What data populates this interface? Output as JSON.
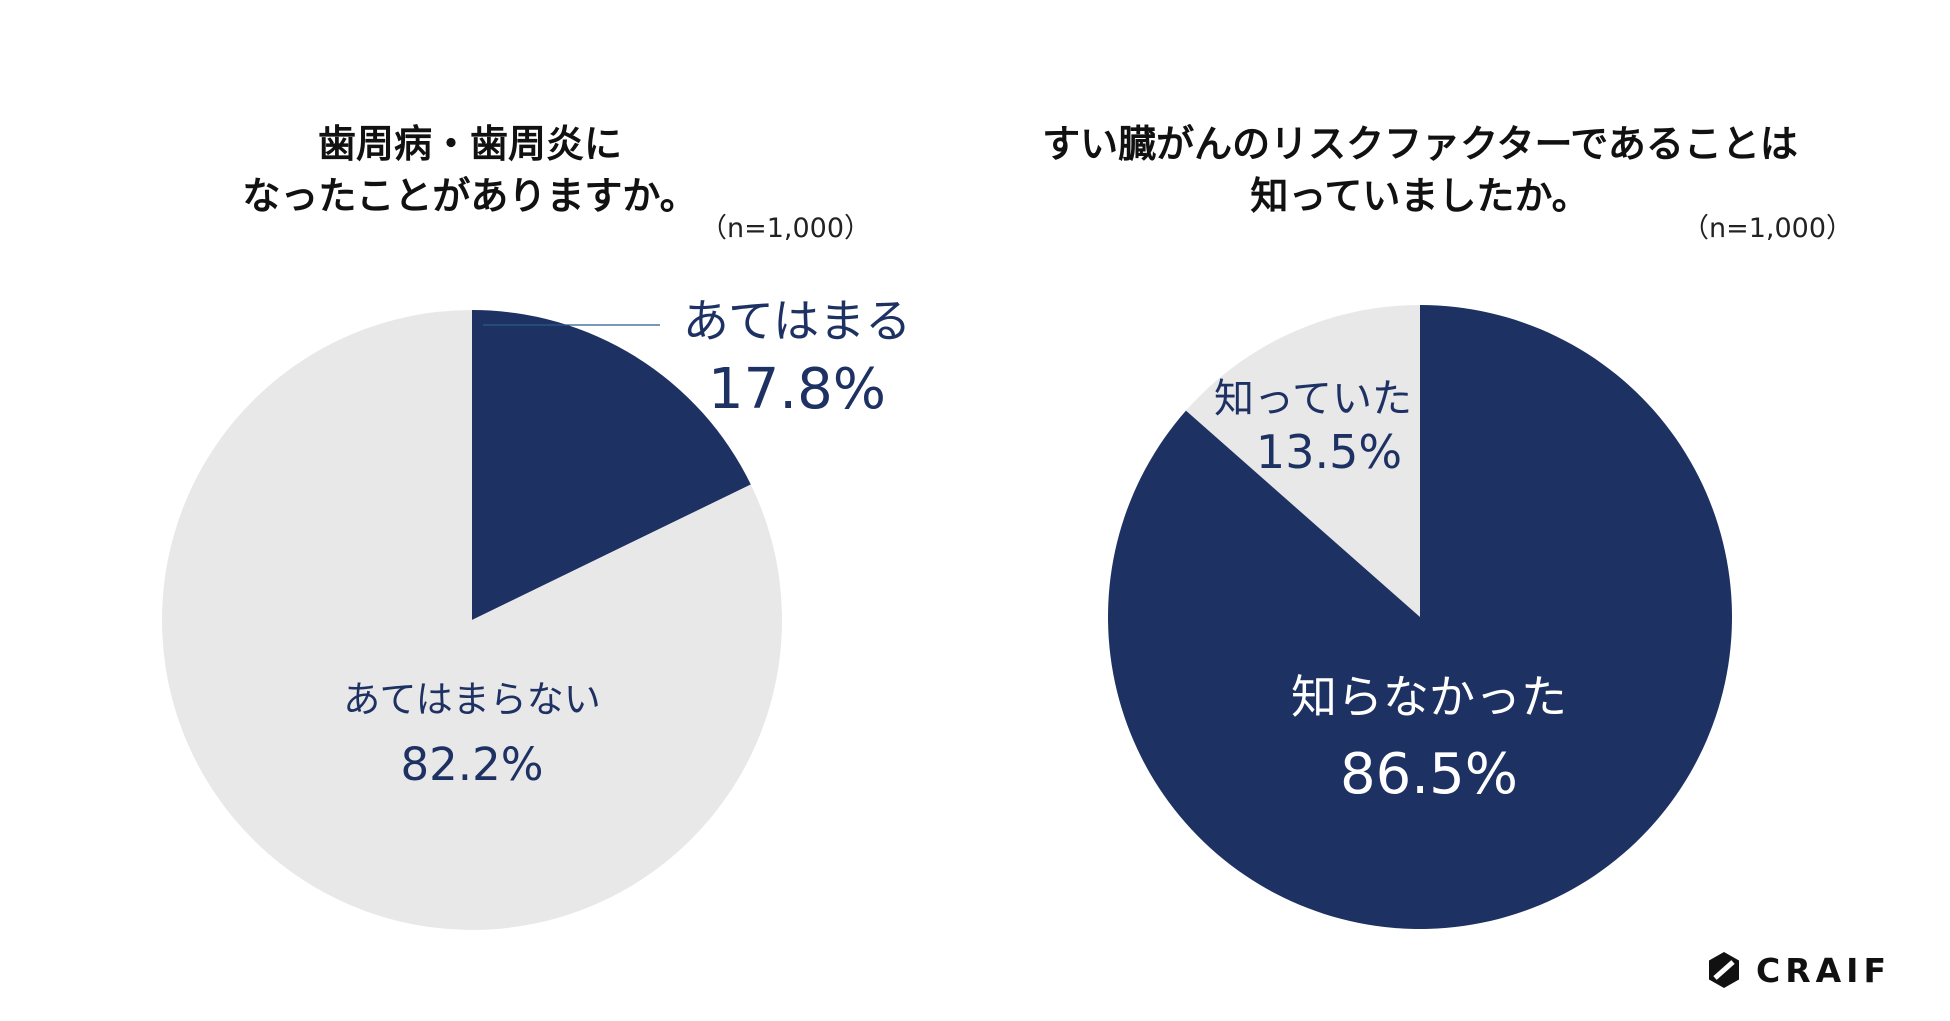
{
  "logo": {
    "text": "CRAIF",
    "icon": "hexagon-slash-icon"
  },
  "colors": {
    "navy": "#1e3163",
    "light": "#e9e8e9",
    "label_navy": "#1e3163",
    "label_white": "#ffffff"
  },
  "chart_data": [
    {
      "type": "pie",
      "title_lines": [
        "歯周病・歯周炎に",
        "なったことがありますか。"
      ],
      "sample_size": "（n=1,000）",
      "start_angle_deg": 0,
      "direction": "clockwise",
      "slices": [
        {
          "category": "あてはまる",
          "value": 17.8,
          "value_label": "17.8%",
          "color": "#1e3163",
          "label_color": "#1e3163"
        },
        {
          "category": "あてはまらない",
          "value": 82.2,
          "value_label": "82.2%",
          "color": "#e9e8e9",
          "label_color": "#1e3163"
        }
      ]
    },
    {
      "type": "pie",
      "title_lines": [
        "すい臓がんのリスクファクターであることは",
        "知っていましたか。"
      ],
      "sample_size": "（n=1,000）",
      "start_angle_deg": 0,
      "direction": "counterclockwise",
      "slices": [
        {
          "category": "知っていた",
          "value": 13.5,
          "value_label": "13.5%",
          "color": "#e9e8e9",
          "label_color": "#1e3163"
        },
        {
          "category": "知らなかった",
          "value": 86.5,
          "value_label": "86.5%",
          "color": "#1e3163",
          "label_color": "#ffffff"
        }
      ]
    }
  ]
}
